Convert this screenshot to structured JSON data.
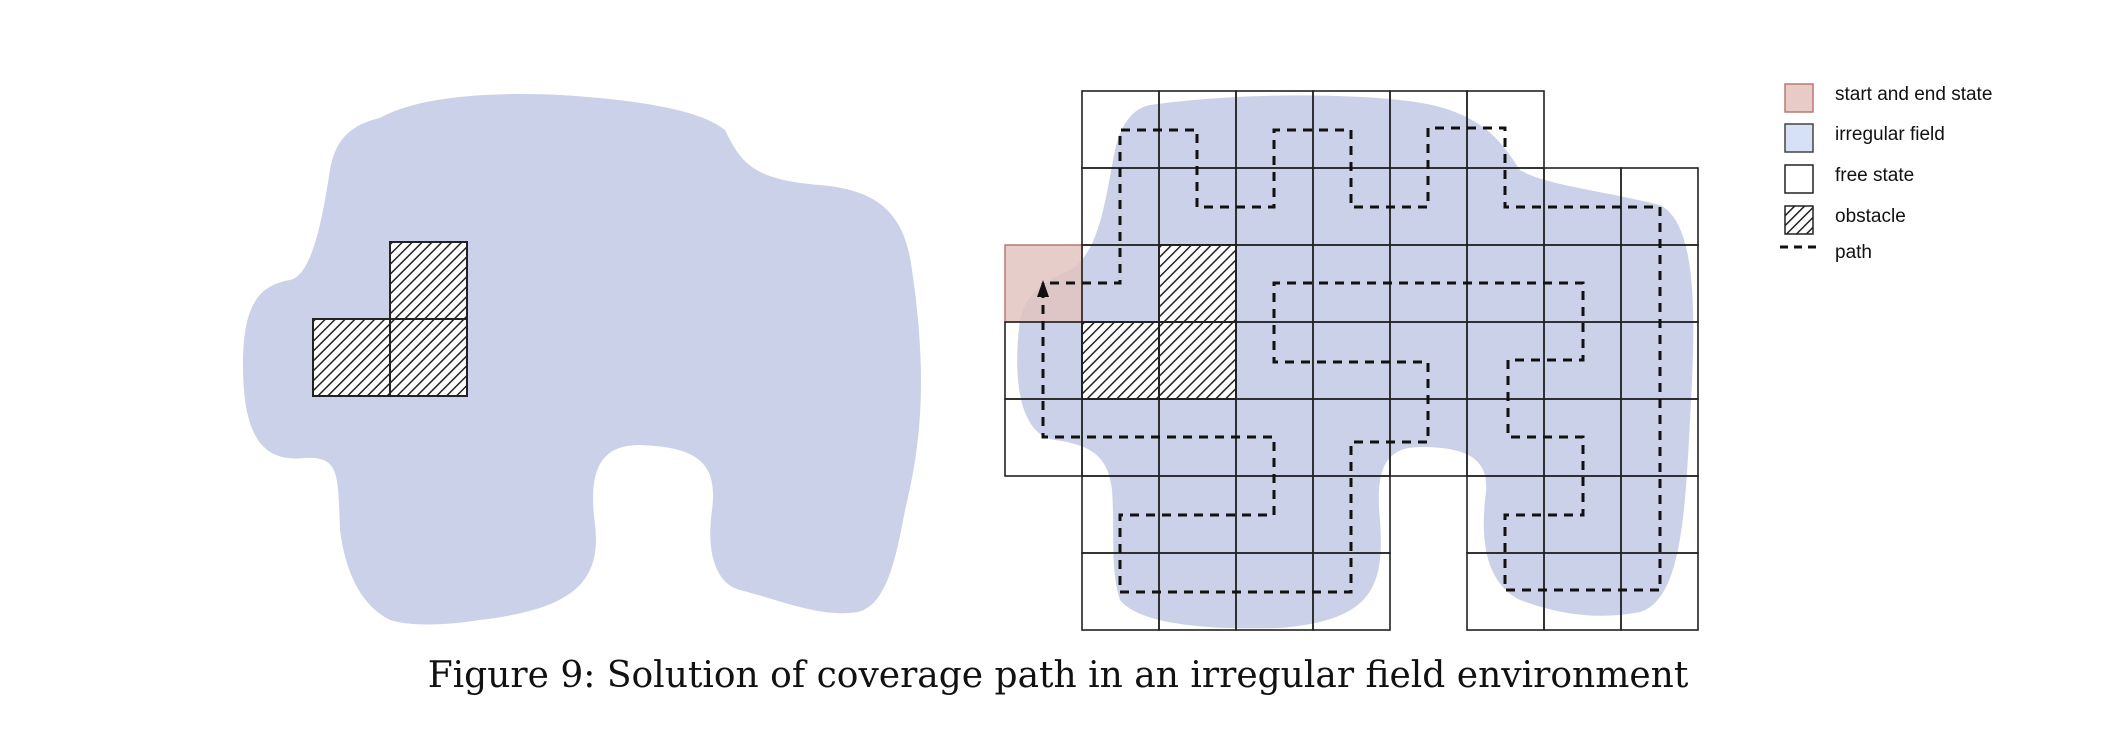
{
  "legend": {
    "start_end": "start and end state",
    "irregular_field": "irregular field",
    "free_state": "free state",
    "obstacle": "obstacle",
    "path": "path"
  },
  "colors": {
    "field": "#cbd1e8",
    "start_end_fill": "#e8cbc6",
    "start_end_border": "#b87a72",
    "legend_field_fill": "#d6e0f7",
    "grid_line": "#222222",
    "path": "#111111"
  },
  "caption": "Figure 9: Solution of coverage path in an irregular field environment"
}
